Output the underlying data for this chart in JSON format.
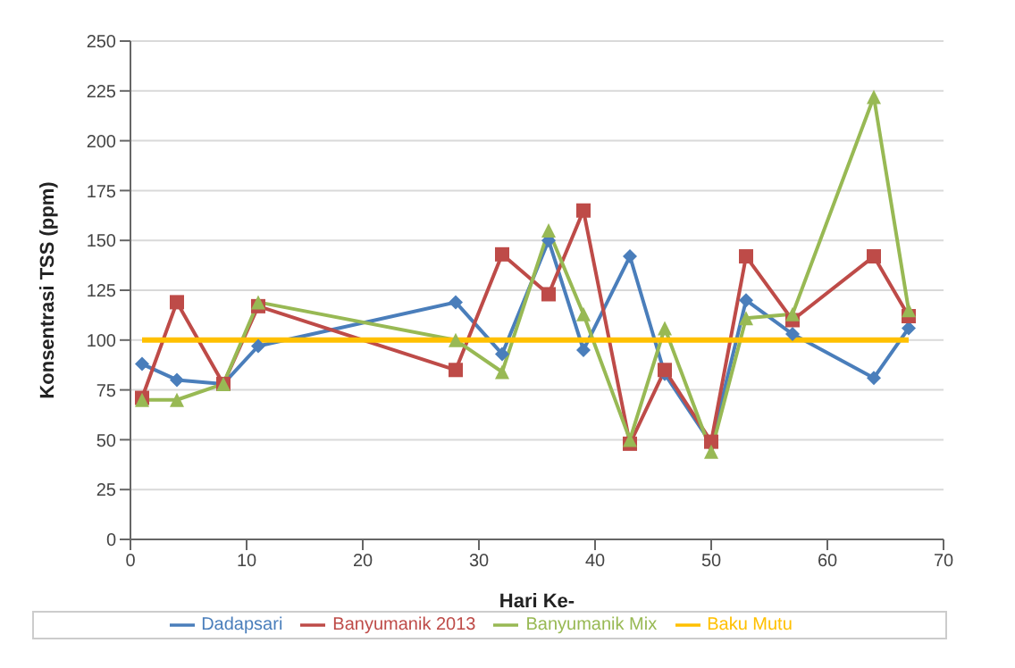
{
  "chart_data": {
    "type": "line",
    "xlabel": "Hari Ke-",
    "ylabel": "Konsentrasi TSS (ppm)",
    "x": [
      1,
      4,
      8,
      11,
      28,
      32,
      36,
      39,
      43,
      46,
      50,
      53,
      57,
      64,
      67
    ],
    "series": [
      {
        "name": "Dadapsari",
        "color": "#4a7ebb",
        "marker": "diamond",
        "values": [
          88,
          80,
          78,
          97,
          119,
          93,
          150,
          95,
          142,
          83,
          48,
          120,
          103,
          81,
          106
        ]
      },
      {
        "name": "Banyumanik 2013",
        "color": "#be4b48",
        "marker": "square",
        "values": [
          71,
          119,
          78,
          117,
          85,
          143,
          123,
          165,
          48,
          85,
          49,
          142,
          110,
          142,
          112
        ]
      },
      {
        "name": "Banyumanik Mix",
        "color": "#98b954",
        "marker": "triangle",
        "values": [
          70,
          70,
          78,
          119,
          100,
          84,
          155,
          113,
          50,
          106,
          44,
          111,
          113,
          222,
          115
        ]
      },
      {
        "name": "Baku Mutu",
        "color": "#ffc000",
        "marker": "none",
        "values": [
          100,
          100,
          100,
          100,
          100,
          100,
          100,
          100,
          100,
          100,
          100,
          100,
          100,
          100,
          100
        ]
      }
    ],
    "xlim": [
      0,
      70
    ],
    "xticks": [
      0,
      10,
      20,
      30,
      40,
      50,
      60,
      70
    ],
    "ylim": [
      0,
      250
    ],
    "yticks": [
      0,
      25,
      50,
      75,
      100,
      125,
      150,
      175,
      200,
      225,
      250
    ],
    "grid": "y",
    "legend": "bottom"
  }
}
